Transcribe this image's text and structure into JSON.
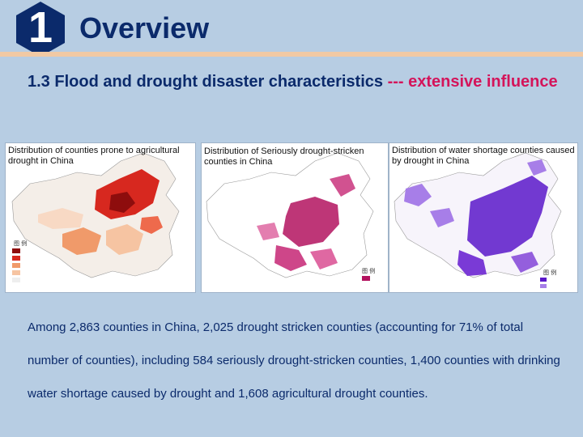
{
  "header": {
    "section_number": "1",
    "section_title": "Overview",
    "colors": {
      "badge": "#0b2a6b",
      "rule": "#f1c9a4",
      "accent": "#d4145a"
    }
  },
  "subtitle": {
    "main": "1.3 Flood and drought disaster characteristics ",
    "accent": "--- extensive influence"
  },
  "maps": [
    {
      "caption": "Distribution of counties prone to agricultural drought in China",
      "legend_title": "图 例"
    },
    {
      "caption": "Distribution of Seriously drought-stricken counties in China",
      "legend_title": "图 例"
    },
    {
      "caption": "Distribution of water shortage counties caused by drought in China",
      "legend_title": "图 例"
    }
  ],
  "body": {
    "text": "Among 2,863 counties in China, 2,025 drought stricken counties (accounting for 71% of total number of counties), including 584 seriously drought-stricken counties, 1,400 counties with drinking water shortage caused by drought and 1,608 agricultural drought counties."
  }
}
